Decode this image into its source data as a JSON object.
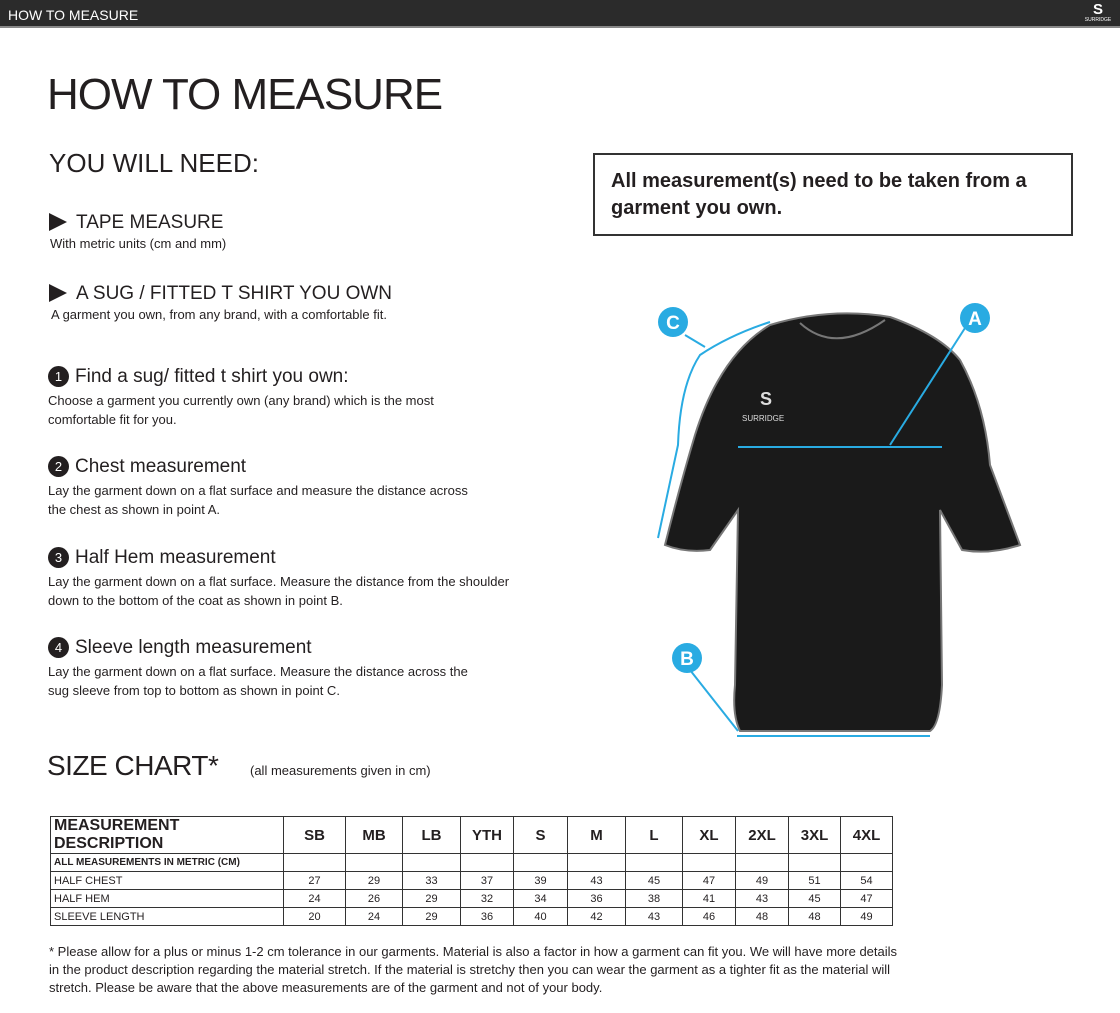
{
  "topbar": {
    "title": "HOW TO MEASURE",
    "logo_text": "SURRIDGE"
  },
  "title": "HOW TO MEASURE",
  "need": {
    "heading": "YOU WILL NEED:",
    "items": [
      {
        "title": "TAPE MEASURE",
        "text": "With metric units (cm and mm)"
      },
      {
        "title": "A SUG / FITTED T SHIRT YOU OWN",
        "text": "A garment you own, from any brand, with a comfortable fit."
      }
    ]
  },
  "steps": [
    {
      "n": "1",
      "title": "Find a sug/ fitted t shirt you own:",
      "lines": [
        "Choose a garment you currently own (any brand) which is the most",
        "comfortable fit for you."
      ]
    },
    {
      "n": "2",
      "title": "Chest measurement",
      "lines": [
        "Lay the garment down on a flat surface and measure the distance across",
        "the chest as shown in point A."
      ]
    },
    {
      "n": "3",
      "title": "Half Hem measurement",
      "lines": [
        "Lay the garment down on a flat surface. Measure the distance from the shoulder",
        "down to the bottom of the coat as shown in point B."
      ]
    },
    {
      "n": "4",
      "title": "Sleeve length measurement",
      "lines": [
        "Lay the garment down on a flat surface. Measure the distance across the",
        "sug sleeve from top to bottom as shown in point C."
      ]
    }
  ],
  "note": "All measurement(s) need to be taken from a garment you own.",
  "diagram": {
    "labels": [
      "A",
      "B",
      "C"
    ],
    "accent": "#29abe2",
    "shirt_logo": "SURRIDGE"
  },
  "size_chart": {
    "title": "SIZE CHART*",
    "subtitle": "(all measurements given in cm)",
    "headers": [
      "MEASUREMENT DESCRIPTION",
      "SB",
      "MB",
      "LB",
      "YTH",
      "S",
      "M",
      "L",
      "XL",
      "2XL",
      "3XL",
      "4XL"
    ],
    "metric_row": "ALL MEASUREMENTS IN METRIC (CM)",
    "rows": [
      {
        "label": "HALF CHEST",
        "values": [
          "27",
          "29",
          "33",
          "37",
          "39",
          "43",
          "45",
          "47",
          "49",
          "51",
          "54"
        ]
      },
      {
        "label": "HALF HEM",
        "values": [
          "24",
          "26",
          "29",
          "32",
          "34",
          "36",
          "38",
          "41",
          "43",
          "45",
          "47"
        ]
      },
      {
        "label": "SLEEVE LENGTH",
        "values": [
          "20",
          "24",
          "29",
          "36",
          "40",
          "42",
          "43",
          "46",
          "48",
          "48",
          "49"
        ]
      }
    ]
  },
  "footnote": "* Please allow for a plus or minus 1-2 cm tolerance in our garments. Material is also a factor in how a garment can fit you. We will have more details in the product description regarding the material stretch.  If the material is stretchy then you can wear the garment as a tighter fit as the material will stretch.  Please be aware that the above measurements are of the garment and not of your body."
}
